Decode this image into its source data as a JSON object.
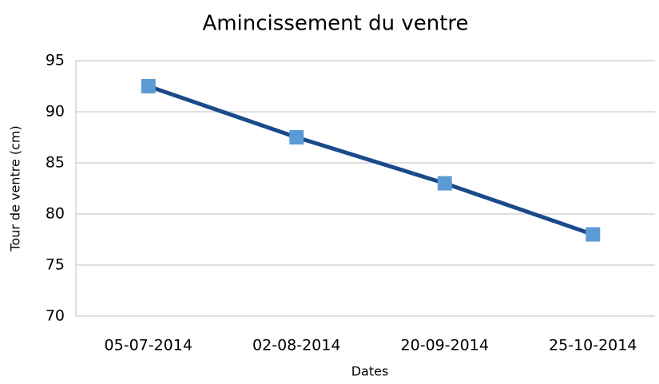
{
  "chart_data": {
    "type": "line",
    "title": "Amincissement du ventre",
    "x_label": "Dates",
    "y_label": "Tour de ventre (cm)",
    "categories": [
      "05-07-2014",
      "02-08-2014",
      "20-09-2014",
      "25-10-2014"
    ],
    "series": [
      {
        "name": "Tour de ventre (cm)",
        "color": "#1a4a8a",
        "marker_color": "#5b9bd5",
        "values": [
          92.5,
          87.5,
          83,
          78
        ]
      }
    ],
    "ylim": [
      70,
      95
    ],
    "yticks": [
      70,
      75,
      80,
      85,
      90,
      95
    ],
    "grid": true
  }
}
